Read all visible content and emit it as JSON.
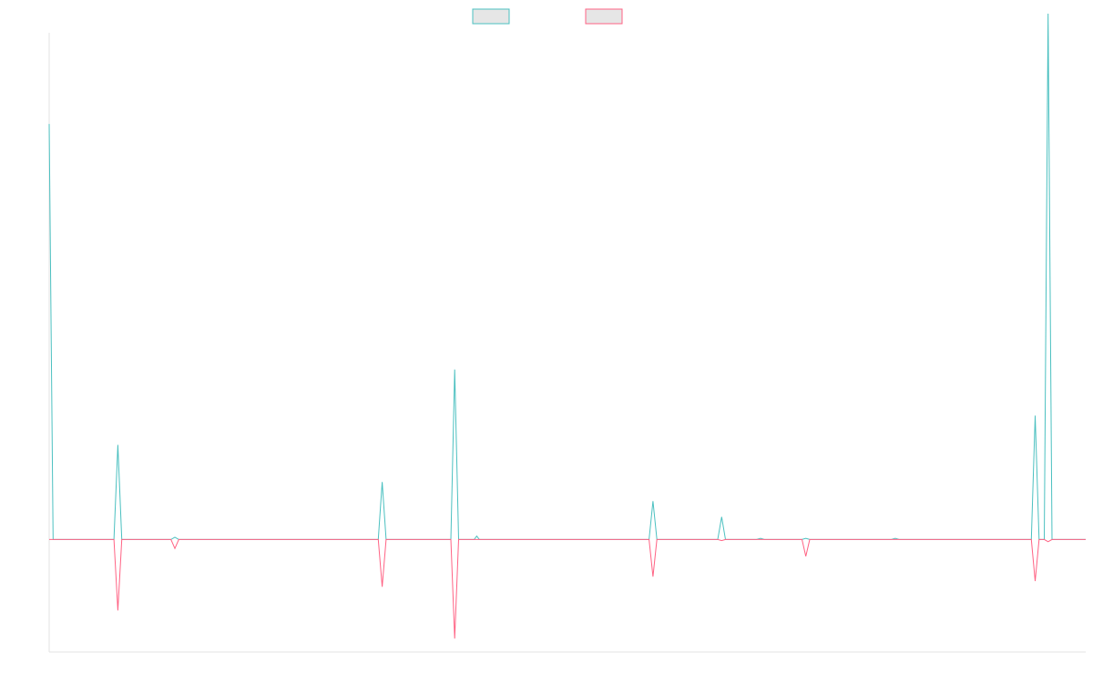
{
  "chart_data": {
    "type": "line",
    "title": "",
    "xlabel": "",
    "ylabel": "",
    "grid": false,
    "legend_position": "top-center",
    "y_range": [
      -100,
      450
    ],
    "x_range": [
      0,
      80
    ],
    "series": [
      {
        "color": "#4bc0c0",
        "points": [
          [
            0,
            369
          ],
          [
            0.3,
            0
          ],
          [
            5,
            0
          ],
          [
            5.3,
            84
          ],
          [
            5.6,
            0
          ],
          [
            9.4,
            0
          ],
          [
            9.7,
            2
          ],
          [
            10,
            0
          ],
          [
            25.4,
            0
          ],
          [
            25.7,
            51
          ],
          [
            26,
            0
          ],
          [
            31,
            0
          ],
          [
            31.3,
            151
          ],
          [
            31.6,
            0
          ],
          [
            32.8,
            0
          ],
          [
            33,
            3
          ],
          [
            33.2,
            0
          ],
          [
            46.3,
            0
          ],
          [
            46.6,
            34
          ],
          [
            46.9,
            0
          ],
          [
            51.6,
            0
          ],
          [
            51.9,
            20
          ],
          [
            52.2,
            0
          ],
          [
            54.6,
            0
          ],
          [
            54.9,
            1
          ],
          [
            55.2,
            0
          ],
          [
            58.1,
            0
          ],
          [
            58.4,
            1
          ],
          [
            58.7,
            0
          ],
          [
            60.8,
            0
          ],
          [
            61.2,
            0
          ],
          [
            61.4,
            0
          ],
          [
            65,
            0
          ],
          [
            65.3,
            1
          ],
          [
            65.6,
            0
          ],
          [
            75.8,
            0
          ],
          [
            76.1,
            110
          ],
          [
            76.4,
            0
          ],
          [
            76.8,
            0
          ],
          [
            77.1,
            467
          ],
          [
            77.4,
            0
          ],
          [
            80,
            0
          ]
        ]
      },
      {
        "color": "#ff6384",
        "points": [
          [
            0,
            0
          ],
          [
            5,
            0
          ],
          [
            5.3,
            -63
          ],
          [
            5.6,
            0
          ],
          [
            9.4,
            0
          ],
          [
            9.7,
            -8
          ],
          [
            10,
            0
          ],
          [
            25.4,
            0
          ],
          [
            25.7,
            -42
          ],
          [
            26,
            0
          ],
          [
            31,
            0
          ],
          [
            31.3,
            -88
          ],
          [
            31.6,
            0
          ],
          [
            32.8,
            0
          ],
          [
            33,
            0
          ],
          [
            33.2,
            0
          ],
          [
            46.3,
            0
          ],
          [
            46.6,
            -33
          ],
          [
            46.9,
            0
          ],
          [
            51.6,
            0
          ],
          [
            51.9,
            -1
          ],
          [
            52.2,
            0
          ],
          [
            58.1,
            0
          ],
          [
            58.4,
            -15
          ],
          [
            58.7,
            0
          ],
          [
            65,
            0
          ],
          [
            75.8,
            0
          ],
          [
            76.1,
            -37
          ],
          [
            76.4,
            0
          ],
          [
            76.8,
            0
          ],
          [
            77.1,
            -2
          ],
          [
            77.4,
            0
          ],
          [
            80,
            0
          ]
        ]
      }
    ],
    "legend": [
      {
        "color": "#4bc0c0"
      },
      {
        "color": "#ff6384"
      }
    ]
  }
}
